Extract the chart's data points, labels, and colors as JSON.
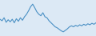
{
  "line_color": "#4a90c4",
  "background_color": "#dce9f5",
  "linewidth": 0.8,
  "y_values": [
    6.5,
    6.2,
    6.8,
    5.9,
    6.4,
    6.0,
    6.5,
    5.8,
    6.6,
    6.1,
    6.8,
    6.3,
    7.0,
    7.5,
    8.2,
    9.0,
    9.5,
    8.8,
    8.0,
    7.5,
    7.2,
    7.8,
    7.0,
    6.8,
    6.2,
    5.8,
    5.4,
    5.0,
    4.8,
    4.5,
    4.2,
    4.0,
    4.3,
    4.6,
    5.0,
    5.2,
    5.0,
    5.3,
    5.1,
    5.4,
    5.2,
    5.5,
    5.3,
    5.6,
    5.4,
    5.7,
    5.5,
    5.8
  ]
}
